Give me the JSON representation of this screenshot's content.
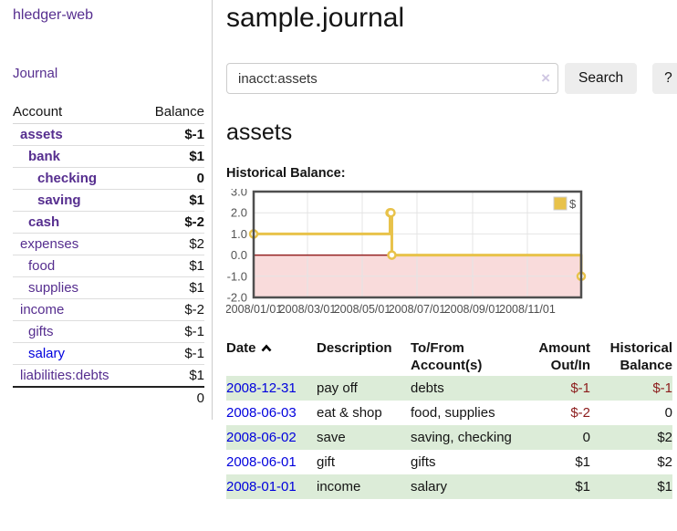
{
  "sidebar": {
    "brand": "hledger-web",
    "journal_link": "Journal",
    "accounts_table": {
      "account_header": "Account",
      "balance_header": "Balance",
      "rows": [
        {
          "name": "assets",
          "indent": 1,
          "bold": true,
          "balance": "$-1",
          "balance_style": "neg-strong"
        },
        {
          "name": "bank",
          "indent": 2,
          "bold": true,
          "balance": "$1",
          "balance_style": "pos"
        },
        {
          "name": "checking",
          "indent": 3,
          "bold": true,
          "balance": "0",
          "balance_style": "pos"
        },
        {
          "name": "saving",
          "indent": 3,
          "bold": true,
          "balance": "$1",
          "balance_style": "pos"
        },
        {
          "name": "cash",
          "indent": 2,
          "bold": true,
          "balance": "$-2",
          "balance_style": "neg-strong"
        },
        {
          "name": "expenses",
          "indent": 1,
          "bold": false,
          "balance": "$2",
          "balance_style": "pos"
        },
        {
          "name": "food",
          "indent": 2,
          "bold": false,
          "balance": "$1",
          "balance_style": "pos"
        },
        {
          "name": "supplies",
          "indent": 2,
          "bold": false,
          "balance": "$1",
          "balance_style": "pos"
        },
        {
          "name": "income",
          "indent": 1,
          "bold": false,
          "balance": "$-2",
          "balance_style": "neg-soft"
        },
        {
          "name": "gifts",
          "indent": 2,
          "bold": false,
          "balance": "$-1",
          "balance_style": "neg-soft"
        },
        {
          "name": "salary",
          "indent": 2,
          "bold": false,
          "balance": "$-1",
          "balance_style": "neg-soft",
          "link_style": "blue"
        },
        {
          "name": "liabilities:debts",
          "indent": 1,
          "bold": false,
          "balance": "$1",
          "balance_style": "pos"
        }
      ],
      "total": "0"
    }
  },
  "main": {
    "title": "sample.journal",
    "search": {
      "value": "inacct:assets",
      "clear_icon": "×",
      "search_label": "Search",
      "help_label": "?"
    },
    "account_heading": "assets",
    "chart_label": "Historical Balance:"
  },
  "chart_data": {
    "type": "line",
    "title": "Historical Balance",
    "step": true,
    "series": [
      {
        "name": "$",
        "color": "#e8c24a",
        "points": [
          [
            "2008-01-01",
            1
          ],
          [
            "2008-06-01",
            2
          ],
          [
            "2008-06-02",
            2
          ],
          [
            "2008-06-03",
            0
          ],
          [
            "2008-12-31",
            -1
          ]
        ]
      }
    ],
    "xlim": [
      "2008-01-01",
      "2008-12-31"
    ],
    "ylim": [
      -2,
      3
    ],
    "yticks": [
      3,
      2,
      1,
      0,
      -1,
      -2
    ],
    "xticks": [
      "2008/01/01",
      "2008/03/01",
      "2008/05/01",
      "2008/07/01",
      "2008/09/01",
      "2008/11/01"
    ],
    "grid": true,
    "legend_position": "top-right",
    "negative_region_color": "#f9dbdb",
    "zero_line_color": "#942222"
  },
  "transactions": {
    "headers": {
      "date": "Date",
      "description": "Description",
      "accounts": "To/From Account(s)",
      "amount": "Amount Out/In",
      "balance": "Historical Balance"
    },
    "rows": [
      {
        "date": "2008-12-31",
        "description": "pay off",
        "accounts": "debts",
        "amount": "$-1",
        "amount_negative": true,
        "balance": "$-1",
        "balance_negative": true
      },
      {
        "date": "2008-06-03",
        "description": "eat & shop",
        "accounts": "food, supplies",
        "amount": "$-2",
        "amount_negative": true,
        "balance": "0",
        "balance_negative": false
      },
      {
        "date": "2008-06-02",
        "description": "save",
        "accounts": "saving, checking",
        "amount": "0",
        "amount_negative": false,
        "balance": "$2",
        "balance_negative": false
      },
      {
        "date": "2008-06-01",
        "description": "gift",
        "accounts": "gifts",
        "amount": "$1",
        "amount_negative": false,
        "balance": "$2",
        "balance_negative": false
      },
      {
        "date": "2008-01-01",
        "description": "income",
        "accounts": "salary",
        "amount": "$1",
        "amount_negative": false,
        "balance": "$1",
        "balance_negative": false
      }
    ]
  }
}
